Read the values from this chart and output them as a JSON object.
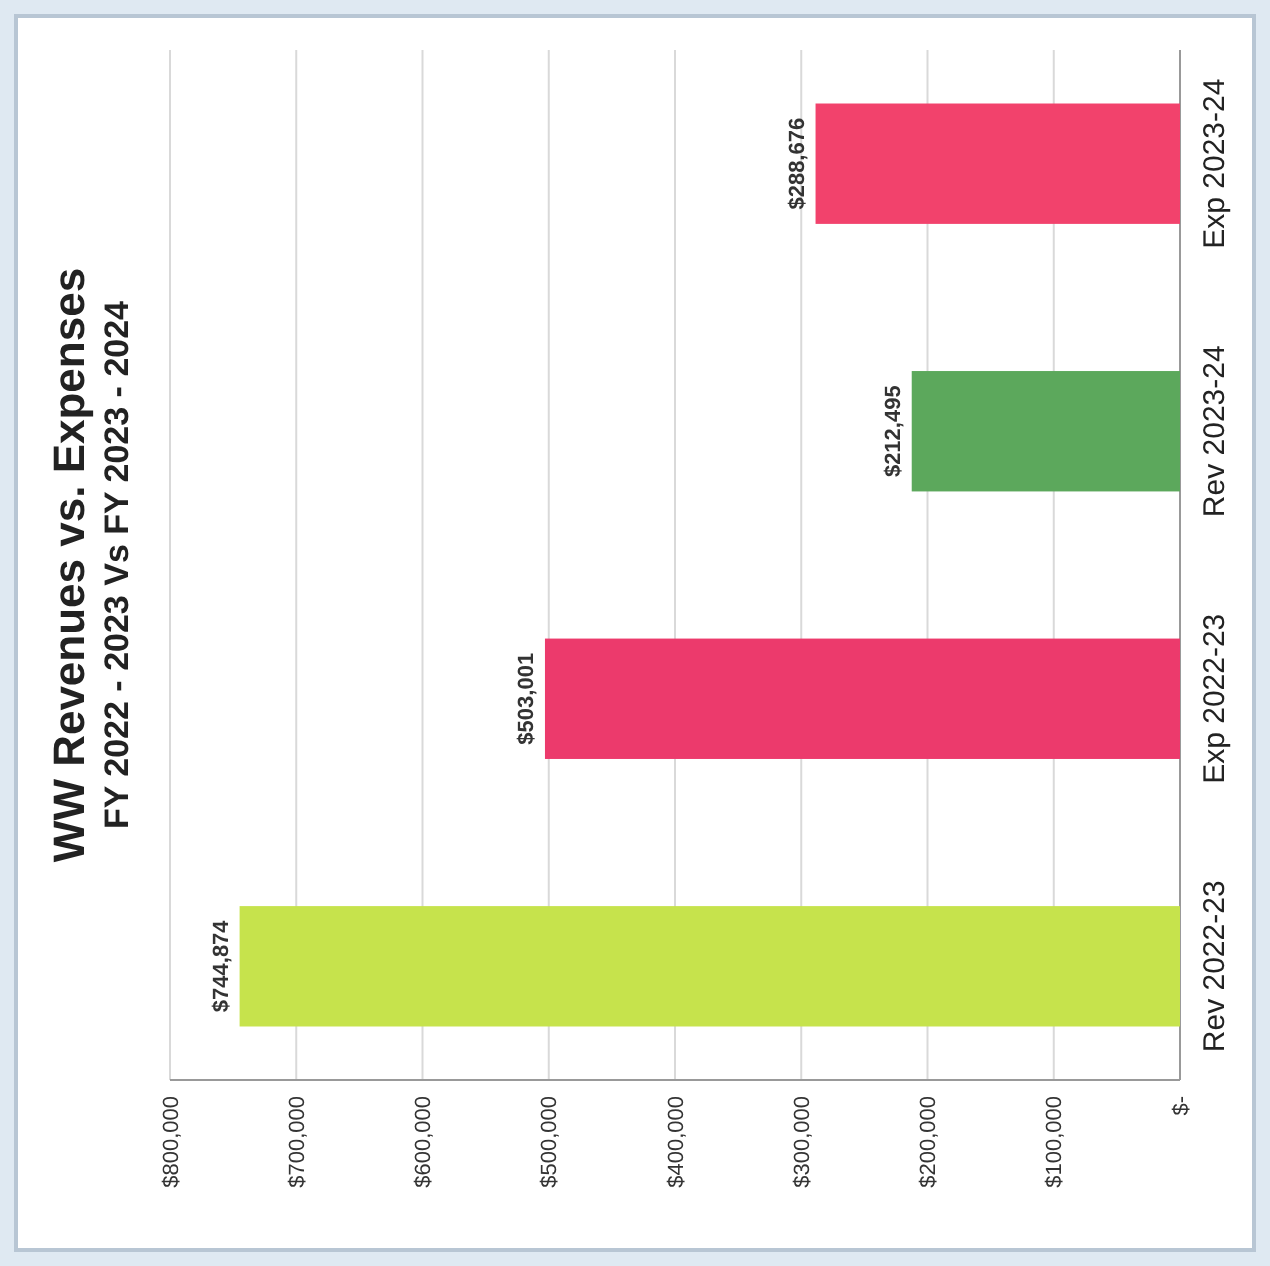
{
  "chart_data": {
    "type": "bar",
    "orientation": "horizontal",
    "title": "WW Revenues vs. Expenses",
    "subtitle": "FY 2022 - 2023 Vs FY 2023 - 2024",
    "categories": [
      "Exp 2023-24",
      "Rev 2023-24",
      "Exp 2022-23",
      "Rev 2022-23"
    ],
    "values": [
      288676,
      212495,
      503001,
      744874
    ],
    "colors": [
      "#f2426c",
      "#5ca85c",
      "#ec3a6c",
      "#c6e34c"
    ],
    "value_labels": [
      "$288,676",
      "$212,495",
      "$503,001",
      "$744,874"
    ],
    "xlim": [
      800000,
      0
    ],
    "xticks": [
      {
        "value": 800000,
        "label": "$800,000"
      },
      {
        "value": 700000,
        "label": "$700,000"
      },
      {
        "value": 600000,
        "label": "$600,000"
      },
      {
        "value": 500000,
        "label": "$500,000"
      },
      {
        "value": 400000,
        "label": "$400,000"
      },
      {
        "value": 300000,
        "label": "$300,000"
      },
      {
        "value": 200000,
        "label": "$200,000"
      },
      {
        "value": 100000,
        "label": "$100,000"
      },
      {
        "value": 0,
        "label": "$-"
      }
    ],
    "grid": "x"
  }
}
